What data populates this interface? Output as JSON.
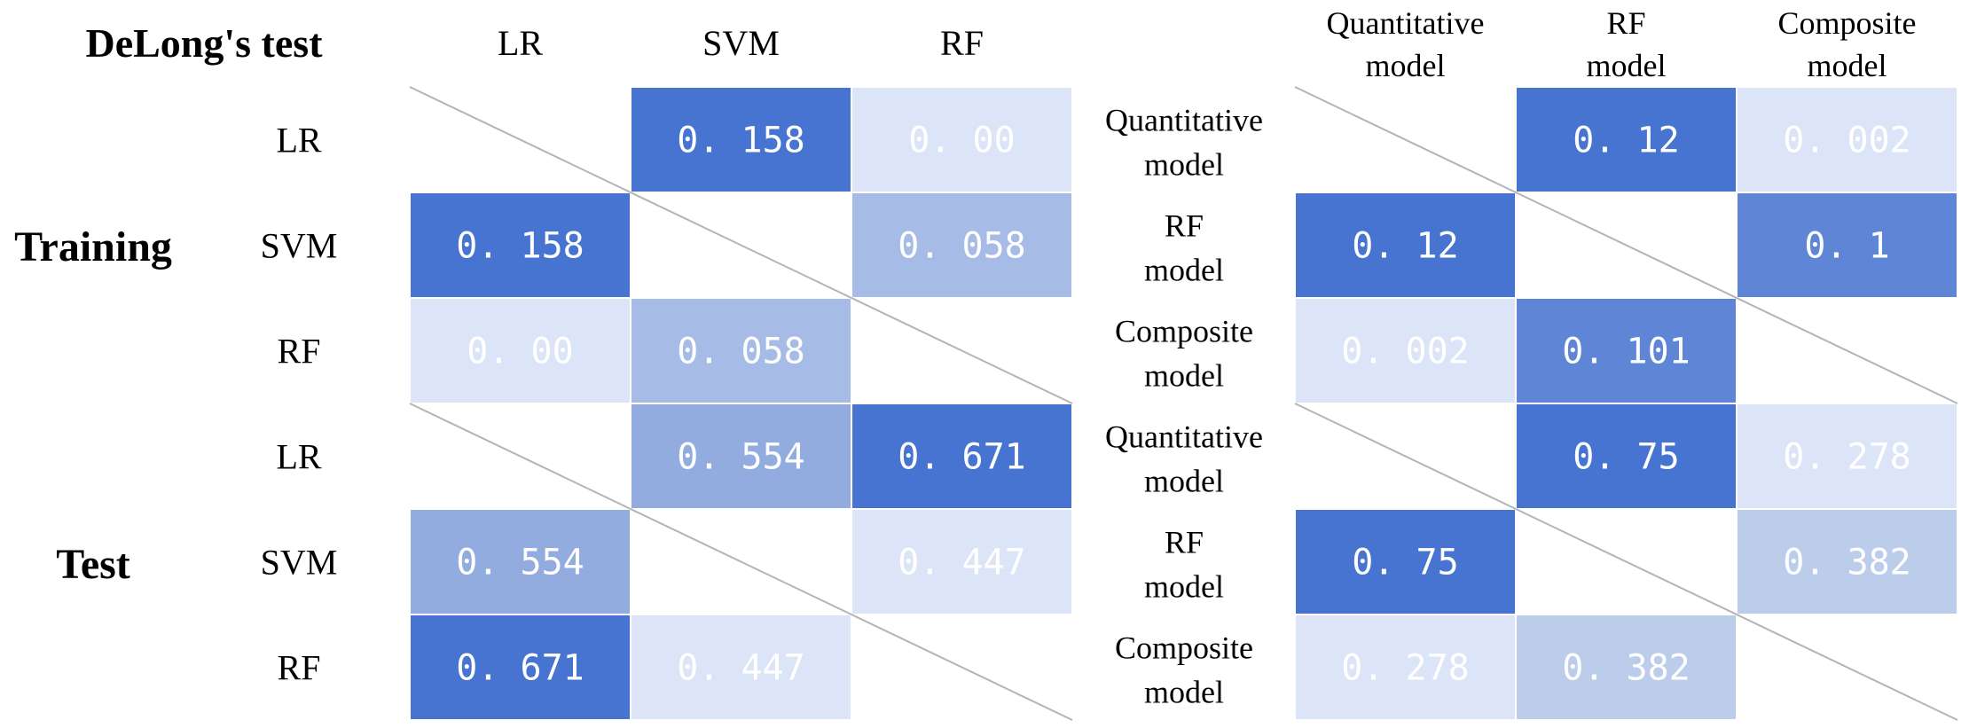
{
  "title": "DeLong's test",
  "colors": {
    "dark": "#4674d0",
    "mid_dark": "#5f86d6",
    "mid": "#93acdf",
    "mid_light": "#a6bce7",
    "light_mid": "#bccdeb",
    "light": "#dce5f7",
    "diagonal": "#b4b4b4"
  },
  "chart_data": [
    {
      "type": "heatmap",
      "name": "Training",
      "group_label": "Training",
      "columns": [
        "LR",
        "SVM",
        "RF"
      ],
      "rows": [
        "LR",
        "SVM",
        "RF"
      ],
      "values": [
        [
          null,
          "0.158",
          "0.00"
        ],
        [
          "0.158",
          null,
          "0.058"
        ],
        [
          "0.00",
          "0.058",
          null
        ]
      ],
      "shade": [
        [
          null,
          "dark",
          "light"
        ],
        [
          "dark",
          null,
          "mid_light"
        ],
        [
          "light",
          "mid_light",
          null
        ]
      ]
    },
    {
      "type": "heatmap",
      "name": "Test",
      "group_label": "Test",
      "columns": [
        "LR",
        "SVM",
        "RF"
      ],
      "rows": [
        "LR",
        "SVM",
        "RF"
      ],
      "values": [
        [
          null,
          "0.554",
          "0.671"
        ],
        [
          "0.554",
          null,
          "0.447"
        ],
        [
          "0.671",
          "0.447",
          null
        ]
      ],
      "shade": [
        [
          null,
          "mid",
          "dark"
        ],
        [
          "mid",
          null,
          "light"
        ],
        [
          "dark",
          "light",
          null
        ]
      ]
    },
    {
      "type": "heatmap",
      "name": "Training-models",
      "columns": [
        [
          "Quantitative",
          "model"
        ],
        [
          "RF",
          "model"
        ],
        [
          "Composite",
          "model"
        ]
      ],
      "rows": [
        [
          "Quantitative",
          "model"
        ],
        [
          "RF",
          "model"
        ],
        [
          "Composite",
          "model"
        ]
      ],
      "values": [
        [
          null,
          "0.12",
          "0.002"
        ],
        [
          "0.12",
          null,
          "0.1"
        ],
        [
          "0.002",
          "0.101",
          null
        ]
      ],
      "shade": [
        [
          null,
          "dark",
          "light"
        ],
        [
          "dark",
          null,
          "mid_dark"
        ],
        [
          "light",
          "mid_dark",
          null
        ]
      ]
    },
    {
      "type": "heatmap",
      "name": "Test-models",
      "rows": [
        [
          "Quantitative",
          "model"
        ],
        [
          "RF",
          "model"
        ],
        [
          "Composite",
          "model"
        ]
      ],
      "values": [
        [
          null,
          "0.75",
          "0.278"
        ],
        [
          "0.75",
          null,
          "0.382"
        ],
        [
          "0.278",
          "0.382",
          null
        ]
      ],
      "shade": [
        [
          null,
          "dark",
          "light"
        ],
        [
          "dark",
          null,
          "light_mid"
        ],
        [
          "light",
          "light_mid",
          null
        ]
      ]
    }
  ]
}
